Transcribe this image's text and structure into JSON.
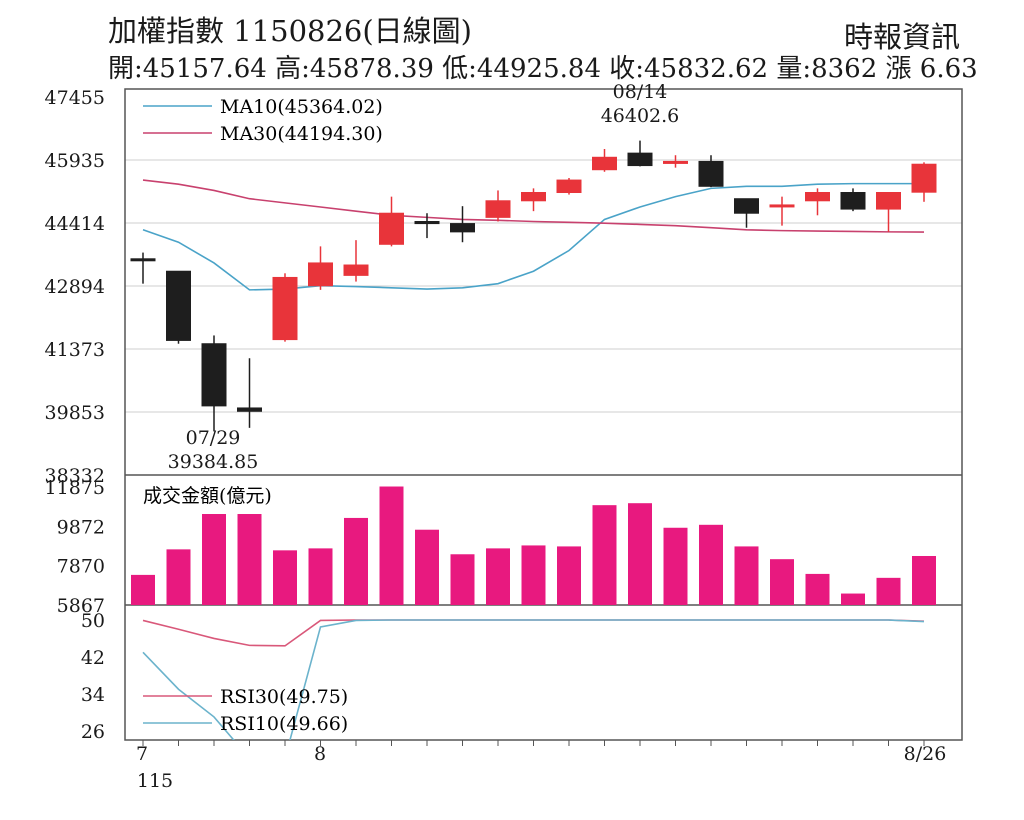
{
  "header": {
    "title": "加權指數 1150826(日線圖)",
    "source": "時報資訊",
    "quote": "開:45157.64 高:45878.39 低:44925.84 收:45832.62 量:8362 漲 6.63"
  },
  "colors": {
    "up": "#e8343a",
    "down": "#1e1e1e",
    "volume": "#e8197f",
    "ma10": "#4aa3c8",
    "ma30": "#c8416e",
    "rsi30": "#d9587a",
    "rsi10": "#6bb3cc",
    "grid": "#cfcfcf"
  },
  "chart_data": [
    {
      "type": "candlestick",
      "title": "加權指數 1150826(日線圖)",
      "y_ticks": [
        "47455",
        "45935",
        "44414",
        "42894",
        "41373",
        "39853",
        "38332"
      ],
      "ylim": [
        38332,
        47455
      ],
      "candles": [
        {
          "open": 43550,
          "close": 43520,
          "high": 43700,
          "low": 42950
        },
        {
          "open": 43250,
          "close": 41580,
          "high": 43250,
          "low": 41500
        },
        {
          "open": 41500,
          "close": 40000,
          "high": 41700,
          "low": 39384.85
        },
        {
          "open": 39950,
          "close": 39870,
          "high": 41150,
          "low": 39470
        },
        {
          "open": 41600,
          "close": 43100,
          "high": 43200,
          "low": 41550
        },
        {
          "open": 42900,
          "close": 43450,
          "high": 43850,
          "low": 42800
        },
        {
          "open": 43150,
          "close": 43400,
          "high": 44000,
          "low": 43000
        },
        {
          "open": 43900,
          "close": 44650,
          "high": 45050,
          "low": 43850
        },
        {
          "open": 44450,
          "close": 44400,
          "high": 44650,
          "low": 44050
        },
        {
          "open": 44400,
          "close": 44200,
          "high": 44820,
          "low": 43950
        },
        {
          "open": 44550,
          "close": 44950,
          "high": 45200,
          "low": 44450
        },
        {
          "open": 44950,
          "close": 45150,
          "high": 45250,
          "low": 44700
        },
        {
          "open": 45150,
          "close": 45450,
          "high": 45500,
          "low": 45100
        },
        {
          "open": 45700,
          "close": 46000,
          "high": 46200,
          "low": 45650
        },
        {
          "open": 46100,
          "close": 45800,
          "high": 46402.6,
          "low": 45780
        },
        {
          "open": 45900,
          "close": 45900,
          "high": 46050,
          "low": 45750
        },
        {
          "open": 45900,
          "close": 45300,
          "high": 46050,
          "low": 45280
        },
        {
          "open": 45000,
          "close": 44650,
          "high": 45000,
          "low": 44300
        },
        {
          "open": 44850,
          "close": 44850,
          "high": 45050,
          "low": 44350
        },
        {
          "open": 44950,
          "close": 45150,
          "high": 45250,
          "low": 44600
        },
        {
          "open": 45150,
          "close": 44750,
          "high": 45250,
          "low": 44700
        },
        {
          "open": 44750,
          "close": 45150,
          "high": 45150,
          "low": 44200
        },
        {
          "open": 45157.64,
          "close": 45832.62,
          "high": 45878.39,
          "low": 44925.84
        }
      ],
      "series": [
        {
          "name": "MA10(45364.02)",
          "values": [
            44250,
            43950,
            43450,
            42800,
            42820,
            42900,
            42880,
            42850,
            42820,
            42850,
            42950,
            43250,
            43750,
            44500,
            44800,
            45050,
            45250,
            45300,
            45300,
            45350,
            45364.02,
            45364.02,
            45364.02
          ]
        },
        {
          "name": "MA30(44194.30)",
          "values": [
            45450,
            45350,
            45200,
            45000,
            44900,
            44800,
            44700,
            44600,
            44550,
            44500,
            44480,
            44450,
            44430,
            44410,
            44380,
            44350,
            44300,
            44250,
            44230,
            44220,
            44210,
            44200,
            44194.3
          ]
        }
      ],
      "annotations": [
        {
          "date": "07/29",
          "value": "39384.85"
        },
        {
          "date": "08/14",
          "value": "46402.6"
        }
      ],
      "x_ticks": [
        "7",
        "8",
        "8/26"
      ],
      "x_sub_label": "115",
      "grid": true
    },
    {
      "type": "bar",
      "title": "成交金額(億元)",
      "y_ticks": [
        "11875",
        "9872",
        "7870",
        "5867"
      ],
      "ylim": [
        5867,
        11875
      ],
      "values": [
        7400,
        8700,
        10500,
        10500,
        8650,
        8750,
        10300,
        11900,
        9700,
        8450,
        8750,
        8900,
        8850,
        10950,
        11050,
        9800,
        9950,
        8850,
        8200,
        7450,
        6450,
        7250,
        8362
      ]
    },
    {
      "type": "line",
      "y_ticks": [
        "50",
        "42",
        "34",
        "26"
      ],
      "ylim": [
        24,
        50
      ],
      "series": [
        {
          "name": "RSI30(49.75)",
          "values": [
            49.9,
            48,
            46,
            44.5,
            44.4,
            49.9,
            50,
            50,
            50,
            50,
            50,
            50,
            50,
            50,
            50,
            50,
            50,
            50,
            50,
            50,
            50,
            50,
            49.75
          ]
        },
        {
          "name": "RSI10(49.66)",
          "values": [
            43,
            35,
            29,
            20,
            20,
            48.5,
            49.9,
            50,
            50,
            50,
            50,
            50,
            50,
            50,
            50,
            50,
            50,
            50,
            50,
            50,
            50,
            50,
            49.66
          ]
        }
      ]
    }
  ]
}
